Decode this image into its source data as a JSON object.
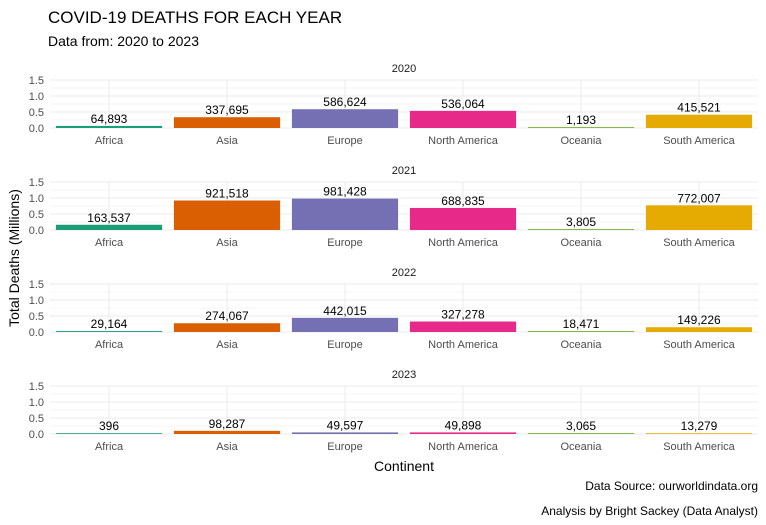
{
  "chart_data": {
    "type": "bar",
    "title": "COVID-19 DEATHS FOR EACH YEAR",
    "subtitle": "Data from: 2020 to 2023",
    "xlabel": "Continent",
    "ylabel": "Total Deaths (Millions)",
    "ylim": [
      0,
      1.5
    ],
    "yticks": [
      "0.0",
      "0.5",
      "1.0",
      "1.5"
    ],
    "grid": true,
    "categories": [
      "Africa",
      "Asia",
      "Europe",
      "North America",
      "Oceania",
      "South America"
    ],
    "colors": [
      "#1b9e77",
      "#d95f02",
      "#7570b3",
      "#e7298a",
      "#66a61e",
      "#e6ab02"
    ],
    "facets": [
      {
        "label": "2020",
        "values": [
          64893,
          337695,
          586624,
          536064,
          1193,
          415521
        ],
        "value_labels": [
          "64,893",
          "337,695",
          "586,624",
          "536,064",
          "1,193",
          "415,521"
        ]
      },
      {
        "label": "2021",
        "values": [
          163537,
          921518,
          981428,
          688835,
          3805,
          772007
        ],
        "value_labels": [
          "163,537",
          "921,518",
          "981,428",
          "688,835",
          "3,805",
          "772,007"
        ]
      },
      {
        "label": "2022",
        "values": [
          29164,
          274067,
          442015,
          327278,
          18471,
          149226
        ],
        "value_labels": [
          "29,164",
          "274,067",
          "442,015",
          "327,278",
          "18,471",
          "149,226"
        ]
      },
      {
        "label": "2023",
        "values": [
          396,
          98287,
          49597,
          49898,
          3065,
          13279
        ],
        "value_labels": [
          "396",
          "98,287",
          "49,597",
          "49,898",
          "3,065",
          "13,279"
        ]
      }
    ],
    "caption_source": "Data Source: ourworldindata.org",
    "caption_analysis": "Analysis by Bright Sackey (Data Analyst)"
  }
}
